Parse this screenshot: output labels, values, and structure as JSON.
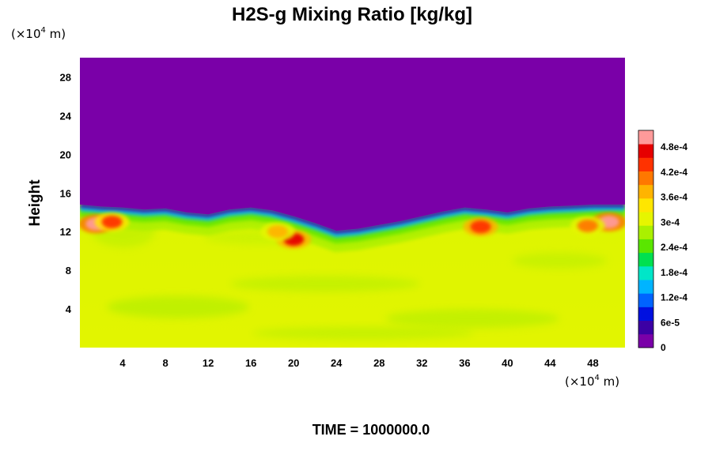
{
  "chart_data": {
    "type": "heatmap",
    "title": "H2S-g Mixing Ratio [kg/kg]",
    "xlabel": "",
    "ylabel": "Height",
    "x_unit": {
      "base": "(×10",
      "exp": "4",
      "tail": " m)"
    },
    "y_unit": {
      "base": "(×10",
      "exp": "4",
      "tail": " m)"
    },
    "xlim": [
      0,
      51
    ],
    "ylim": [
      0,
      30
    ],
    "x_ticks": [
      4,
      8,
      12,
      16,
      20,
      24,
      28,
      32,
      36,
      40,
      44,
      48
    ],
    "x_tick_labels": [
      "4",
      "8",
      "12",
      "16",
      "20",
      "24",
      "28",
      "32",
      "36",
      "40",
      "44",
      "48"
    ],
    "y_ticks": [
      4,
      8,
      12,
      16,
      20,
      24,
      28
    ],
    "y_tick_labels": [
      "4",
      "8",
      "12",
      "16",
      "20",
      "24",
      "28"
    ],
    "colorbar": {
      "range": [
        0,
        0.00052
      ],
      "tick_values": [
        0,
        6e-05,
        0.00012,
        0.00018,
        0.00024,
        0.0003,
        0.00036,
        0.00042,
        0.00048
      ],
      "tick_labels": [
        "0",
        "6e-5",
        "1.2e-4",
        "1.8e-4",
        "2.4e-4",
        "3e-4",
        "3.6e-4",
        "4.2e-4",
        "4.8e-4"
      ],
      "colors": [
        "#7a00a8",
        "#3c00a4",
        "#0010e0",
        "#0064ff",
        "#00b4ff",
        "#00e6c8",
        "#00e050",
        "#5ae600",
        "#aaf000",
        "#e6f500",
        "#ffe600",
        "#ffb400",
        "#ff7800",
        "#ff3200",
        "#e60000",
        "#ff9a9a"
      ]
    },
    "interface_height": [
      [
        0,
        14.8
      ],
      [
        2,
        14.6
      ],
      [
        4,
        14.5
      ],
      [
        6,
        14.3
      ],
      [
        8,
        14.4
      ],
      [
        10,
        14.0
      ],
      [
        12,
        13.8
      ],
      [
        14,
        14.3
      ],
      [
        16,
        14.5
      ],
      [
        18,
        14.2
      ],
      [
        20,
        13.6
      ],
      [
        22,
        12.9
      ],
      [
        24,
        12.1
      ],
      [
        26,
        12.3
      ],
      [
        28,
        12.7
      ],
      [
        30,
        13.1
      ],
      [
        32,
        13.6
      ],
      [
        34,
        14.1
      ],
      [
        36,
        14.5
      ],
      [
        38,
        14.3
      ],
      [
        40,
        14.0
      ],
      [
        42,
        14.4
      ],
      [
        44,
        14.6
      ],
      [
        46,
        14.7
      ],
      [
        48,
        14.8
      ],
      [
        51,
        14.8
      ]
    ],
    "features": [
      {
        "x": 1.5,
        "y": 12.8,
        "value": 0.0005
      },
      {
        "x": 3.0,
        "y": 13.0,
        "value": 0.00044
      },
      {
        "x": 20.0,
        "y": 11.2,
        "value": 0.00047
      },
      {
        "x": 18.5,
        "y": 12.0,
        "value": 0.00038
      },
      {
        "x": 37.5,
        "y": 12.5,
        "value": 0.00045
      },
      {
        "x": 49.5,
        "y": 13.0,
        "value": 0.0005
      },
      {
        "x": 47.5,
        "y": 12.6,
        "value": 0.0004
      }
    ],
    "background_value_above": 0,
    "background_value_below": 0.00034,
    "grid": false
  },
  "footer": {
    "time_label": "TIME = 1000000.0"
  }
}
